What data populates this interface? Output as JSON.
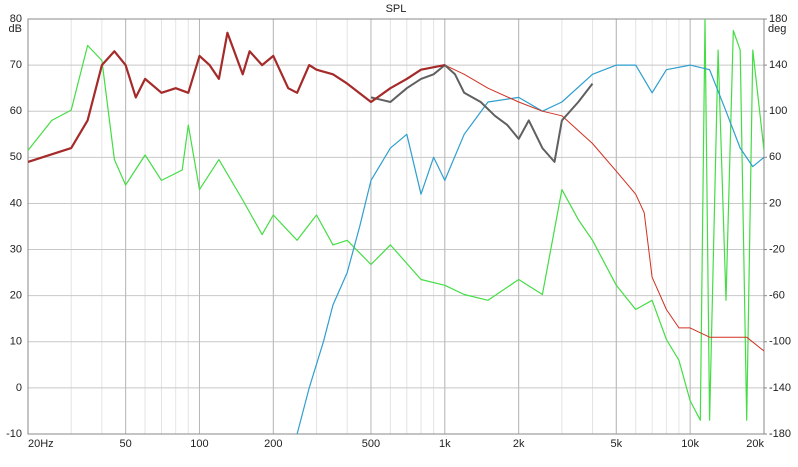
{
  "chart_data": {
    "type": "line",
    "title": "SPL",
    "y_unit": "dB",
    "y2_unit": "deg",
    "log_x": true,
    "grid": true,
    "xlim": [
      20,
      20000
    ],
    "xticks": [
      {
        "value": 20,
        "label": "20Hz"
      },
      50,
      100,
      200,
      500,
      {
        "value": 1000,
        "label": "1k"
      },
      {
        "value": 2000,
        "label": "2k"
      },
      {
        "value": 5000,
        "label": "5k"
      },
      {
        "value": 10000,
        "label": "10k"
      },
      {
        "value": 20000,
        "label": "20k"
      }
    ],
    "ylim": [
      -10,
      80
    ],
    "yticks": [
      -10,
      0,
      10,
      20,
      30,
      40,
      50,
      60,
      70,
      80
    ],
    "y2lim": [
      -180,
      180
    ],
    "y2ticks": [
      -180,
      -140,
      -100,
      -60,
      -20,
      20,
      60,
      100,
      140,
      180
    ],
    "series": [
      {
        "color": "#44dd44",
        "line_width": 1.2,
        "axis": "y2",
        "x": [
          20,
          25,
          30,
          35,
          40,
          45,
          50,
          60,
          70,
          85,
          90,
          100,
          120,
          150,
          180,
          200,
          250,
          300,
          350,
          400,
          500,
          600,
          800,
          1000,
          1200,
          1500,
          2000,
          2500,
          3000,
          3500,
          4000,
          5000,
          6000,
          7000,
          8000,
          9000,
          10000,
          11000,
          11500,
          12000,
          13000,
          14000,
          15000,
          16000,
          17000,
          18000,
          20000
        ],
        "values": [
          66,
          92,
          101,
          157,
          144,
          58,
          36,
          62,
          40,
          49,
          88,
          32,
          58,
          23,
          -7,
          10,
          -12,
          10,
          -16,
          -12,
          -33,
          -16,
          -46,
          -51,
          -59,
          -64,
          -46,
          -59,
          32,
          6,
          -12,
          -51,
          -72,
          -64,
          -98,
          -116,
          -151,
          -168,
          180,
          -168,
          153,
          -64,
          170,
          153,
          -168,
          153,
          66
        ]
      },
      {
        "color": "#2e9fce",
        "line_width": 1.2,
        "x": [
          250,
          280,
          320,
          350,
          400,
          450,
          500,
          600,
          700,
          800,
          900,
          1000,
          1200,
          1500,
          2000,
          2500,
          3000,
          4000,
          5000,
          6000,
          7000,
          8000,
          10000,
          12000,
          14000,
          16000,
          18000,
          20000
        ],
        "values": [
          -10,
          0,
          10,
          18,
          25,
          35,
          45,
          52,
          55,
          42,
          50,
          45,
          55,
          62,
          63,
          60,
          62,
          68,
          70,
          70,
          64,
          69,
          70,
          69,
          60,
          52,
          48,
          50
        ]
      },
      {
        "color": "#d03020",
        "line_width": 1,
        "x": [
          600,
          800,
          1000,
          1200,
          1500,
          2000,
          2500,
          3000,
          4000,
          5000,
          6000,
          6500,
          7000,
          8000,
          9000,
          10000,
          12000,
          15000,
          17000,
          20000
        ],
        "values": [
          65,
          69,
          70,
          68,
          65,
          62,
          60,
          59,
          53,
          47,
          42,
          38,
          24,
          17,
          13,
          13,
          11,
          11,
          11,
          8
        ]
      },
      {
        "color": "#606060",
        "line_width": 2,
        "x": [
          500,
          600,
          700,
          800,
          900,
          1000,
          1100,
          1200,
          1400,
          1600,
          1800,
          2000,
          2200,
          2500,
          2800,
          3000,
          3500,
          4000
        ],
        "values": [
          63,
          62,
          65,
          67,
          68,
          70,
          68,
          64,
          62,
          59,
          57,
          54,
          58,
          52,
          49,
          58,
          62,
          66
        ]
      },
      {
        "color": "#a52a2a",
        "line_width": 2.2,
        "x": [
          20,
          30,
          35,
          40,
          45,
          50,
          55,
          60,
          70,
          80,
          90,
          100,
          110,
          120,
          130,
          150,
          160,
          180,
          200,
          230,
          250,
          280,
          300,
          350,
          400,
          500,
          600,
          700,
          800,
          1000
        ],
        "values": [
          49,
          52,
          58,
          70,
          73,
          70,
          63,
          67,
          64,
          65,
          64,
          72,
          70,
          67,
          77,
          68,
          73,
          70,
          72,
          65,
          64,
          70,
          69,
          68,
          66,
          62,
          65,
          67,
          69,
          70
        ]
      }
    ]
  }
}
